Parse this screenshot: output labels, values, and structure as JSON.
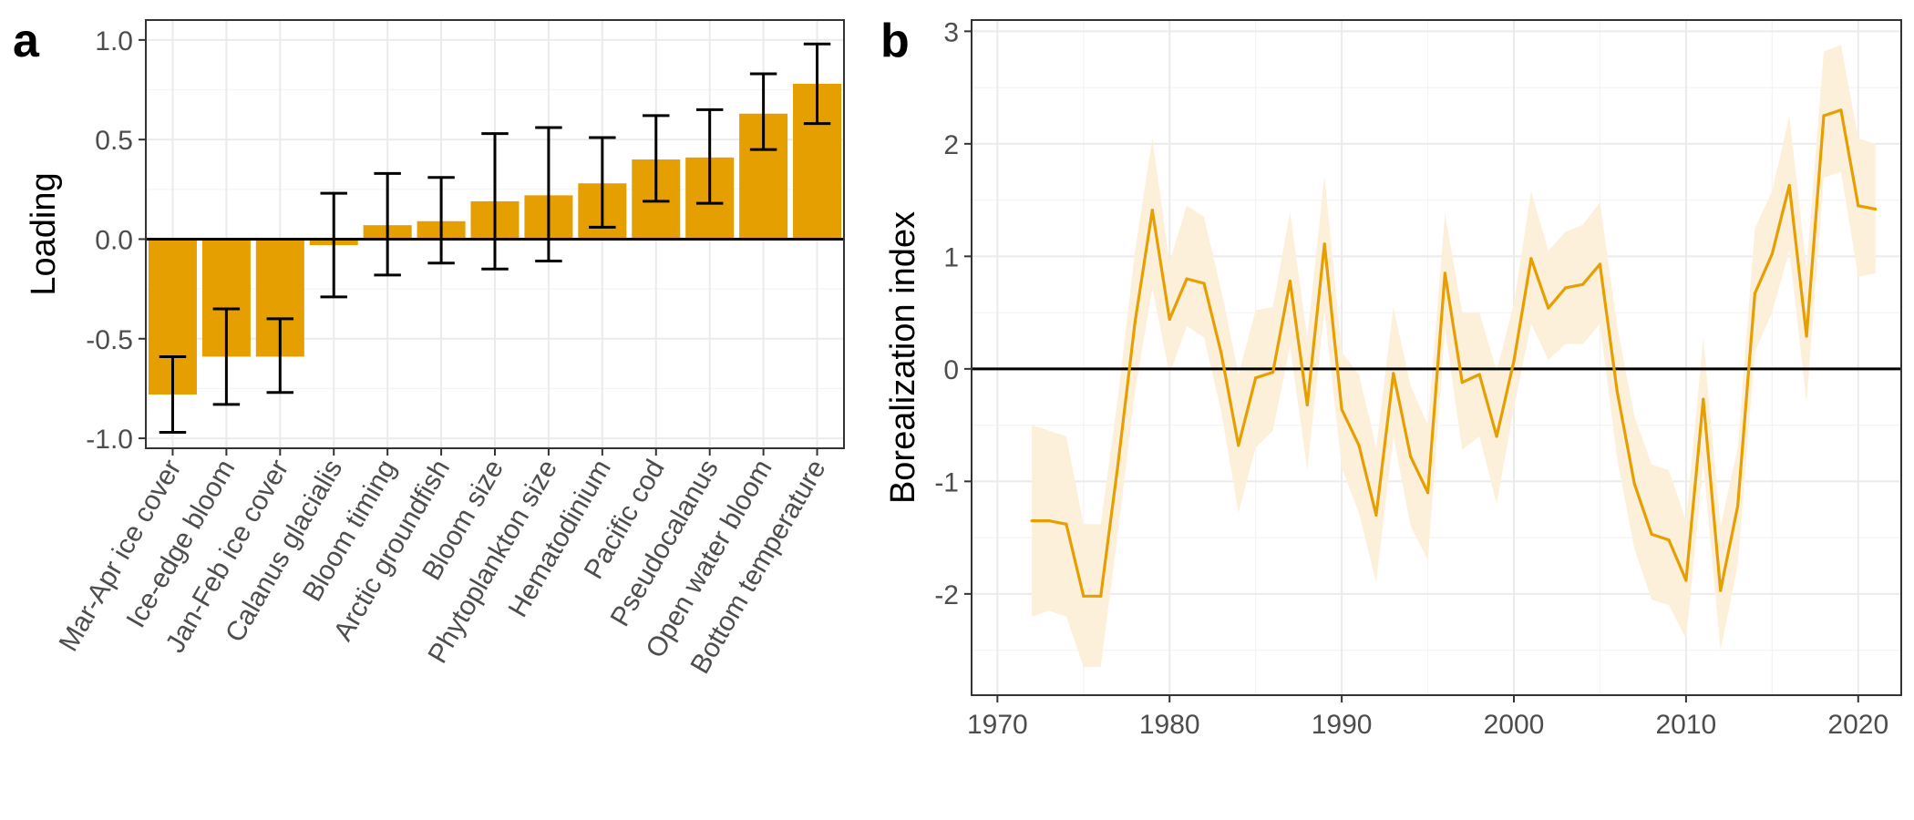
{
  "panels": {
    "a": {
      "letter": "a"
    },
    "b": {
      "letter": "b"
    }
  },
  "colors": {
    "bar": "#E69F00",
    "line": "#E69F00",
    "ribbon": "#FDF0DA",
    "zero_line": "#000000"
  },
  "chart_data": [
    {
      "type": "bar",
      "panel": "a",
      "ylabel": "Loading",
      "xlabel": "",
      "ylim": [
        -1.05,
        1.1
      ],
      "yticks": [
        -1.0,
        -0.5,
        0.0,
        0.5,
        1.0
      ],
      "ytick_labels": [
        "-1.0",
        "-0.5",
        "0.0",
        "0.5",
        "1.0"
      ],
      "grid": true,
      "error_bars": true,
      "categories": [
        "Mar-Apr ice cover",
        "Ice-edge bloom",
        "Jan-Feb ice cover",
        "Calanus glacialis",
        "Bloom timing",
        "Arctic groundfish",
        "Bloom size",
        "Phytoplankton size",
        "Hematodinium",
        "Pacific cod",
        "Pseudocalanus",
        "Open water bloom",
        "Bottom temperature"
      ],
      "values": [
        -0.78,
        -0.59,
        -0.59,
        -0.03,
        0.07,
        0.09,
        0.19,
        0.22,
        0.28,
        0.4,
        0.41,
        0.63,
        0.78
      ],
      "lower": [
        -0.97,
        -0.83,
        -0.77,
        -0.29,
        -0.18,
        -0.12,
        -0.15,
        -0.11,
        0.06,
        0.19,
        0.18,
        0.45,
        0.58
      ],
      "upper": [
        -0.59,
        -0.35,
        -0.4,
        0.23,
        0.33,
        0.31,
        0.53,
        0.56,
        0.51,
        0.62,
        0.65,
        0.83,
        0.98
      ]
    },
    {
      "type": "line",
      "panel": "b",
      "ylabel": "Borealization index",
      "xlabel": "",
      "xlim": [
        1968.5,
        2022.5
      ],
      "ylim": [
        -2.9,
        3.1
      ],
      "xticks": [
        1970,
        1980,
        1990,
        2000,
        2010,
        2020
      ],
      "xtick_labels": [
        "1970",
        "1980",
        "1990",
        "2000",
        "2010",
        "2020"
      ],
      "yticks": [
        -2,
        -1,
        0,
        1,
        2,
        3
      ],
      "ytick_labels": [
        "-2",
        "-1",
        "0",
        "1",
        "2",
        "3"
      ],
      "grid": true,
      "ribbon": true,
      "x": [
        1972,
        1973,
        1974,
        1975,
        1976,
        1977,
        1978,
        1979,
        1980,
        1981,
        1982,
        1983,
        1984,
        1985,
        1986,
        1987,
        1988,
        1989,
        1990,
        1991,
        1992,
        1993,
        1994,
        1995,
        1996,
        1997,
        1998,
        1999,
        2000,
        2001,
        2002,
        2003,
        2004,
        2005,
        2006,
        2007,
        2008,
        2009,
        2010,
        2011,
        2012,
        2013,
        2014,
        2015,
        2016,
        2017,
        2018,
        2019,
        2020,
        2021
      ],
      "y": [
        -1.35,
        -1.35,
        -1.38,
        -2.02,
        -2.02,
        -0.85,
        0.42,
        1.41,
        0.44,
        0.8,
        0.76,
        0.14,
        -0.68,
        -0.08,
        -0.03,
        0.78,
        -0.32,
        1.11,
        -0.36,
        -0.68,
        -1.3,
        -0.04,
        -0.78,
        -1.1,
        0.85,
        -0.12,
        -0.05,
        -0.6,
        0.07,
        0.98,
        0.54,
        0.72,
        0.75,
        0.93,
        -0.2,
        -1.02,
        -1.47,
        -1.52,
        -1.88,
        -0.27,
        -1.97,
        -1.22,
        0.67,
        1.02,
        1.63,
        0.29,
        2.25,
        2.3,
        1.45,
        1.42
      ],
      "lower": [
        -2.2,
        -2.15,
        -2.2,
        -2.65,
        -2.65,
        -1.45,
        -0.2,
        0.72,
        -0.05,
        0.38,
        0.28,
        -0.38,
        -1.28,
        -0.7,
        -0.55,
        0.2,
        -0.9,
        0.52,
        -0.88,
        -1.28,
        -1.9,
        -0.6,
        -1.4,
        -1.7,
        0.35,
        -0.72,
        -0.6,
        -1.2,
        -0.35,
        0.4,
        0.08,
        0.22,
        0.22,
        0.4,
        -0.8,
        -1.6,
        -2.05,
        -2.1,
        -2.4,
        -0.85,
        -2.5,
        -1.75,
        0.15,
        0.5,
        1.05,
        -0.3,
        1.7,
        1.75,
        0.82,
        0.85
      ],
      "upper": [
        -0.5,
        -0.55,
        -0.6,
        -1.38,
        -1.38,
        -0.25,
        1.05,
        2.05,
        0.95,
        1.45,
        1.35,
        0.7,
        -0.05,
        0.52,
        0.55,
        1.4,
        0.28,
        1.72,
        0.15,
        -0.05,
        -0.7,
        0.55,
        -0.15,
        -0.5,
        1.38,
        0.5,
        0.5,
        -0.02,
        0.58,
        1.58,
        1.05,
        1.22,
        1.28,
        1.48,
        0.38,
        -0.42,
        -0.85,
        -0.9,
        -1.35,
        0.28,
        -1.4,
        -0.7,
        1.25,
        1.58,
        2.25,
        0.9,
        2.82,
        2.88,
        2.05,
        2.0
      ]
    }
  ]
}
